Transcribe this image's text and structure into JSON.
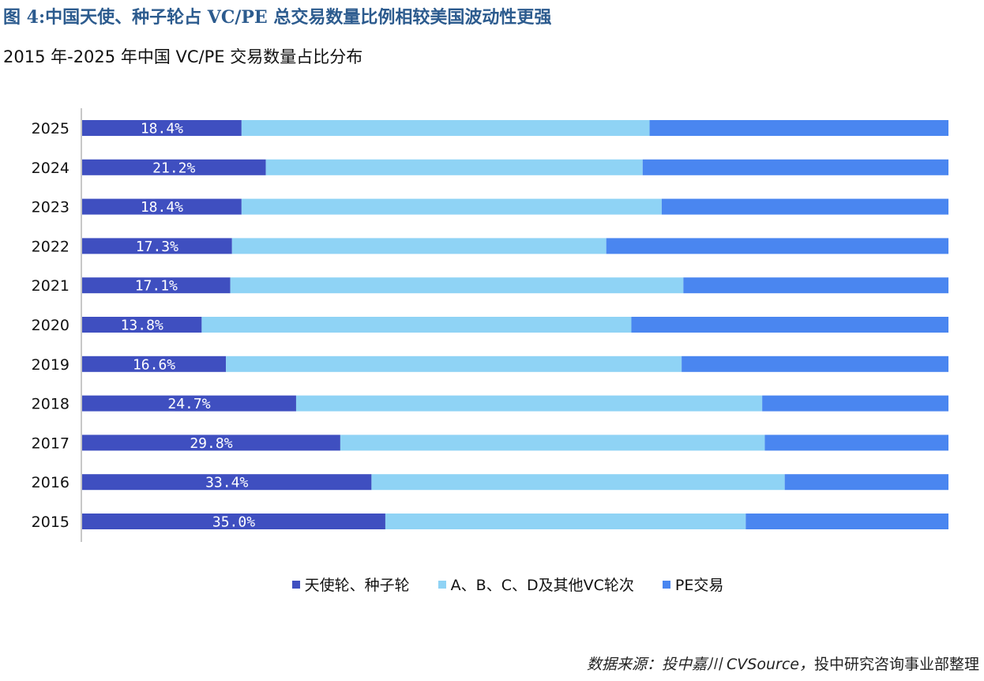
{
  "figure": {
    "title": "图 4:中国天使、种子轮占 VC/PE 总交易数量比例相较美国波动性更强",
    "subtitle": "2015 年-2025 年中国 VC/PE 交易数量占比分布"
  },
  "source": {
    "prefix": "数据来源：投中嘉川 CVSource，",
    "suffix": "投中研究咨询事业部整理"
  },
  "colors": {
    "angel": "#3f4fc0",
    "abcd": "#8fd3f5",
    "pe": "#4a86f0",
    "title": "#2c5b8e",
    "axis": "#c8c8c8"
  },
  "chart_data": {
    "type": "bar",
    "orientation": "horizontal",
    "stacked": "percent",
    "title": "2015 年-2025 年中国 VC/PE 交易数量占比分布",
    "xlabel": "",
    "ylabel": "",
    "xlim": [
      0,
      100
    ],
    "categories": [
      "2025",
      "2024",
      "2023",
      "2022",
      "2021",
      "2020",
      "2019",
      "2018",
      "2017",
      "2016",
      "2015"
    ],
    "series": [
      {
        "name": "天使轮、种子轮",
        "values": [
          18.4,
          21.2,
          18.4,
          17.3,
          17.1,
          13.8,
          16.6,
          24.7,
          29.8,
          33.4,
          35.0
        ],
        "labels": [
          "18.4%",
          "21.2%",
          "18.4%",
          "17.3%",
          "17.1%",
          "13.8%",
          "16.6%",
          "24.7%",
          "29.8%",
          "33.4%",
          "35.0%"
        ]
      },
      {
        "name": "A、B、C、D及其他VC轮次",
        "values": [
          47.1,
          43.5,
          48.5,
          43.2,
          52.3,
          49.6,
          52.6,
          53.8,
          49.0,
          47.7,
          41.6
        ]
      },
      {
        "name": "PE交易",
        "values": [
          34.5,
          35.3,
          33.1,
          39.5,
          30.6,
          36.6,
          30.8,
          21.5,
          21.2,
          18.9,
          23.4
        ]
      }
    ],
    "legend": "bottom-center",
    "grid": false
  }
}
